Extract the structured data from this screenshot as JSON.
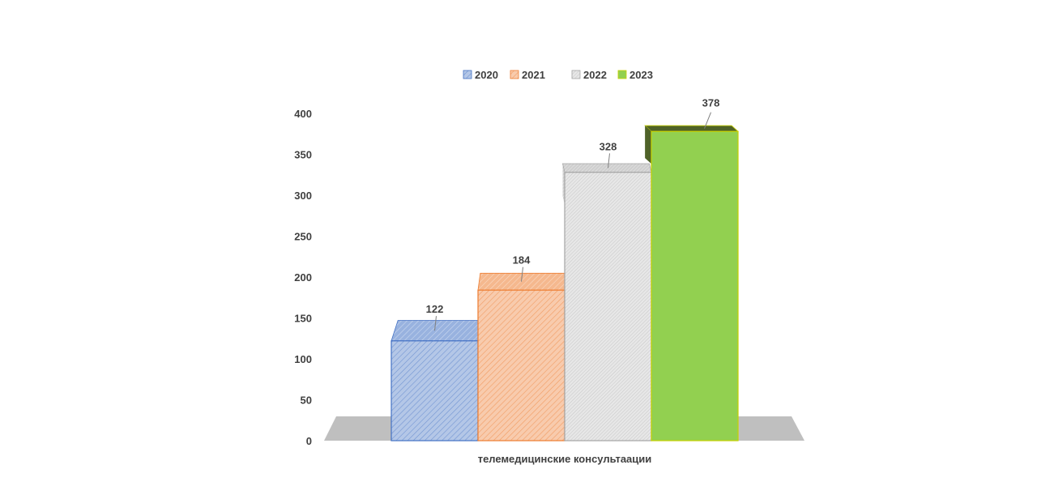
{
  "chart_data": {
    "type": "bar",
    "title": "",
    "xlabel": "",
    "ylabel": "",
    "categories": [
      "телемедицинские консультаации"
    ],
    "series": [
      {
        "name": "2020",
        "values": [
          122
        ],
        "color": "#4472c4",
        "fill": "#b4c7e7",
        "pattern": "diagonal-stripes"
      },
      {
        "name": "2021",
        "values": [
          184
        ],
        "color": "#ed7d31",
        "fill": "#f8cbad",
        "pattern": "diagonal-stripes"
      },
      {
        "name": "2022",
        "values": [
          328
        ],
        "color": "#a5a5a5",
        "fill": "#e7e7e7",
        "pattern": "fine-diagonal"
      },
      {
        "name": "2023",
        "values": [
          378
        ],
        "color": "#c9d200",
        "fill": "#92d050",
        "pattern": "solid"
      }
    ],
    "ylim": [
      0,
      400
    ],
    "yticks": [
      "0",
      "50",
      "100",
      "150",
      "200",
      "250",
      "300",
      "350",
      "400"
    ],
    "data_labels": [
      "122",
      "184",
      "328",
      "378"
    ],
    "legend_placement": "top",
    "grid": false,
    "style": "3d-column"
  }
}
